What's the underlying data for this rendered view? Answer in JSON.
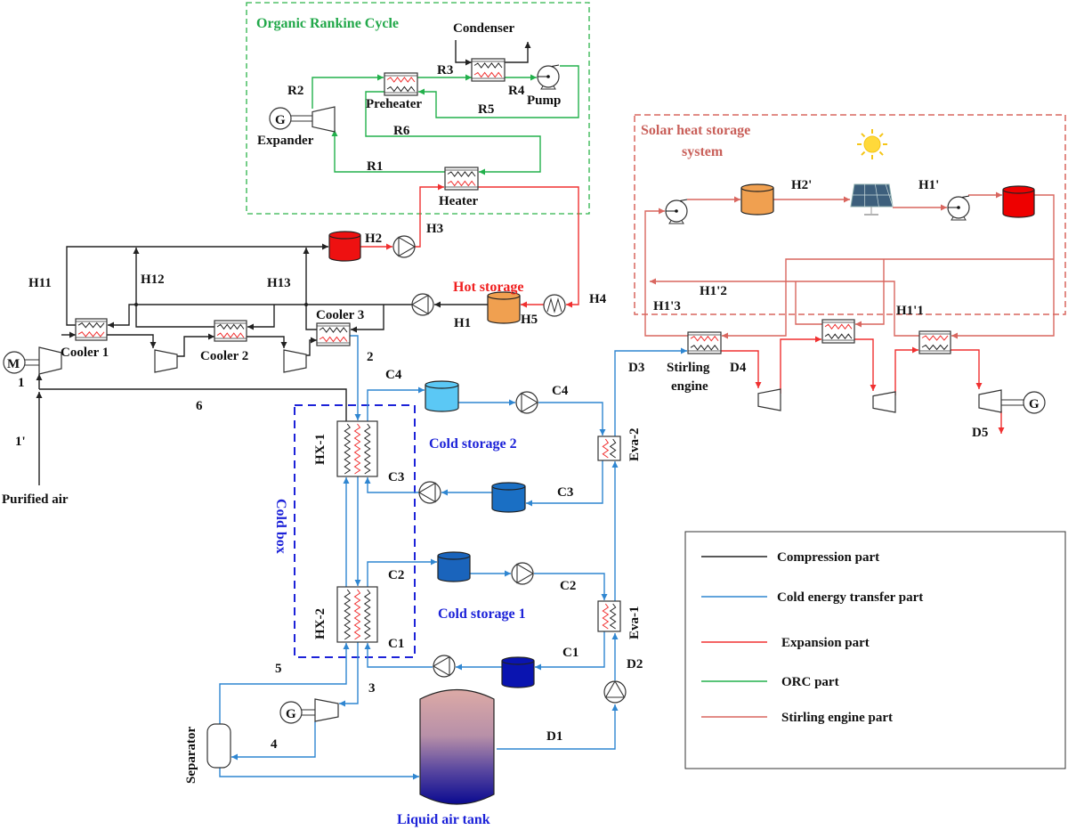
{
  "colors": {
    "compression": "#222222",
    "cold_transfer": "#2f86d1",
    "expansion": "#f03030",
    "orc": "#22b04b",
    "stirling": "#d9665f",
    "cold_box": "#1c22d8"
  },
  "orc": {
    "title": "Organic Rankine Cycle",
    "condenser": "Condenser",
    "preheater": "Preheater",
    "expander": "Expander",
    "pump": "Pump",
    "heater": "Heater",
    "generator": "G",
    "streams": {
      "R1": "R1",
      "R2": "R2",
      "R3": "R3",
      "R4": "R4",
      "R5": "R5",
      "R6": "R6"
    }
  },
  "compression": {
    "motor": "M",
    "cooler1": "Cooler 1",
    "cooler2": "Cooler 2",
    "cooler3": "Cooler 3",
    "hot_storage": "Hot storage",
    "purified_air": "Purified air",
    "streams": {
      "H1": "H1",
      "H2": "H2",
      "H3": "H3",
      "H4": "H4",
      "H5": "H5",
      "H11": "H11",
      "H12": "H12",
      "H13": "H13",
      "s1": "1",
      "s1p": "1'",
      "s2": "2",
      "s3": "3",
      "s4": "4",
      "s5": "5",
      "s6": "6"
    }
  },
  "cold": {
    "cold_box": "Cold box",
    "hx1": "HX-1",
    "hx2": "HX-2",
    "cold_storage_2": "Cold storage 2",
    "cold_storage_1": "Cold storage 1",
    "separator": "Separator",
    "liquid_air_tank": "Liquid air tank",
    "eva1": "Eva-1",
    "eva2": "Eva-2",
    "generator": "G",
    "streams": {
      "C1": "C1",
      "C2": "C2",
      "C3": "C3",
      "C4": "C4",
      "D1": "D1",
      "D2": "D2",
      "D3": "D3",
      "D4": "D4",
      "D5": "D5"
    }
  },
  "solar": {
    "title_line1": "Solar heat storage",
    "title_line2": "system",
    "stirling_line1": "Stirling",
    "stirling_line2": "engine",
    "generator": "G",
    "streams": {
      "H2p": "H2'",
      "H1p": "H1'",
      "H1p1": "H1'1",
      "H1p2": "H1'2",
      "H1p3": "H1'3"
    }
  },
  "legend": {
    "items": [
      {
        "label": "Compression part",
        "color": "#222222"
      },
      {
        "label": "Cold energy transfer part",
        "color": "#2f86d1"
      },
      {
        "label": "Expansion part",
        "color": "#f03030"
      },
      {
        "label": "ORC part",
        "color": "#22b04b"
      },
      {
        "label": "Stirling engine part",
        "color": "#d9665f"
      }
    ]
  }
}
